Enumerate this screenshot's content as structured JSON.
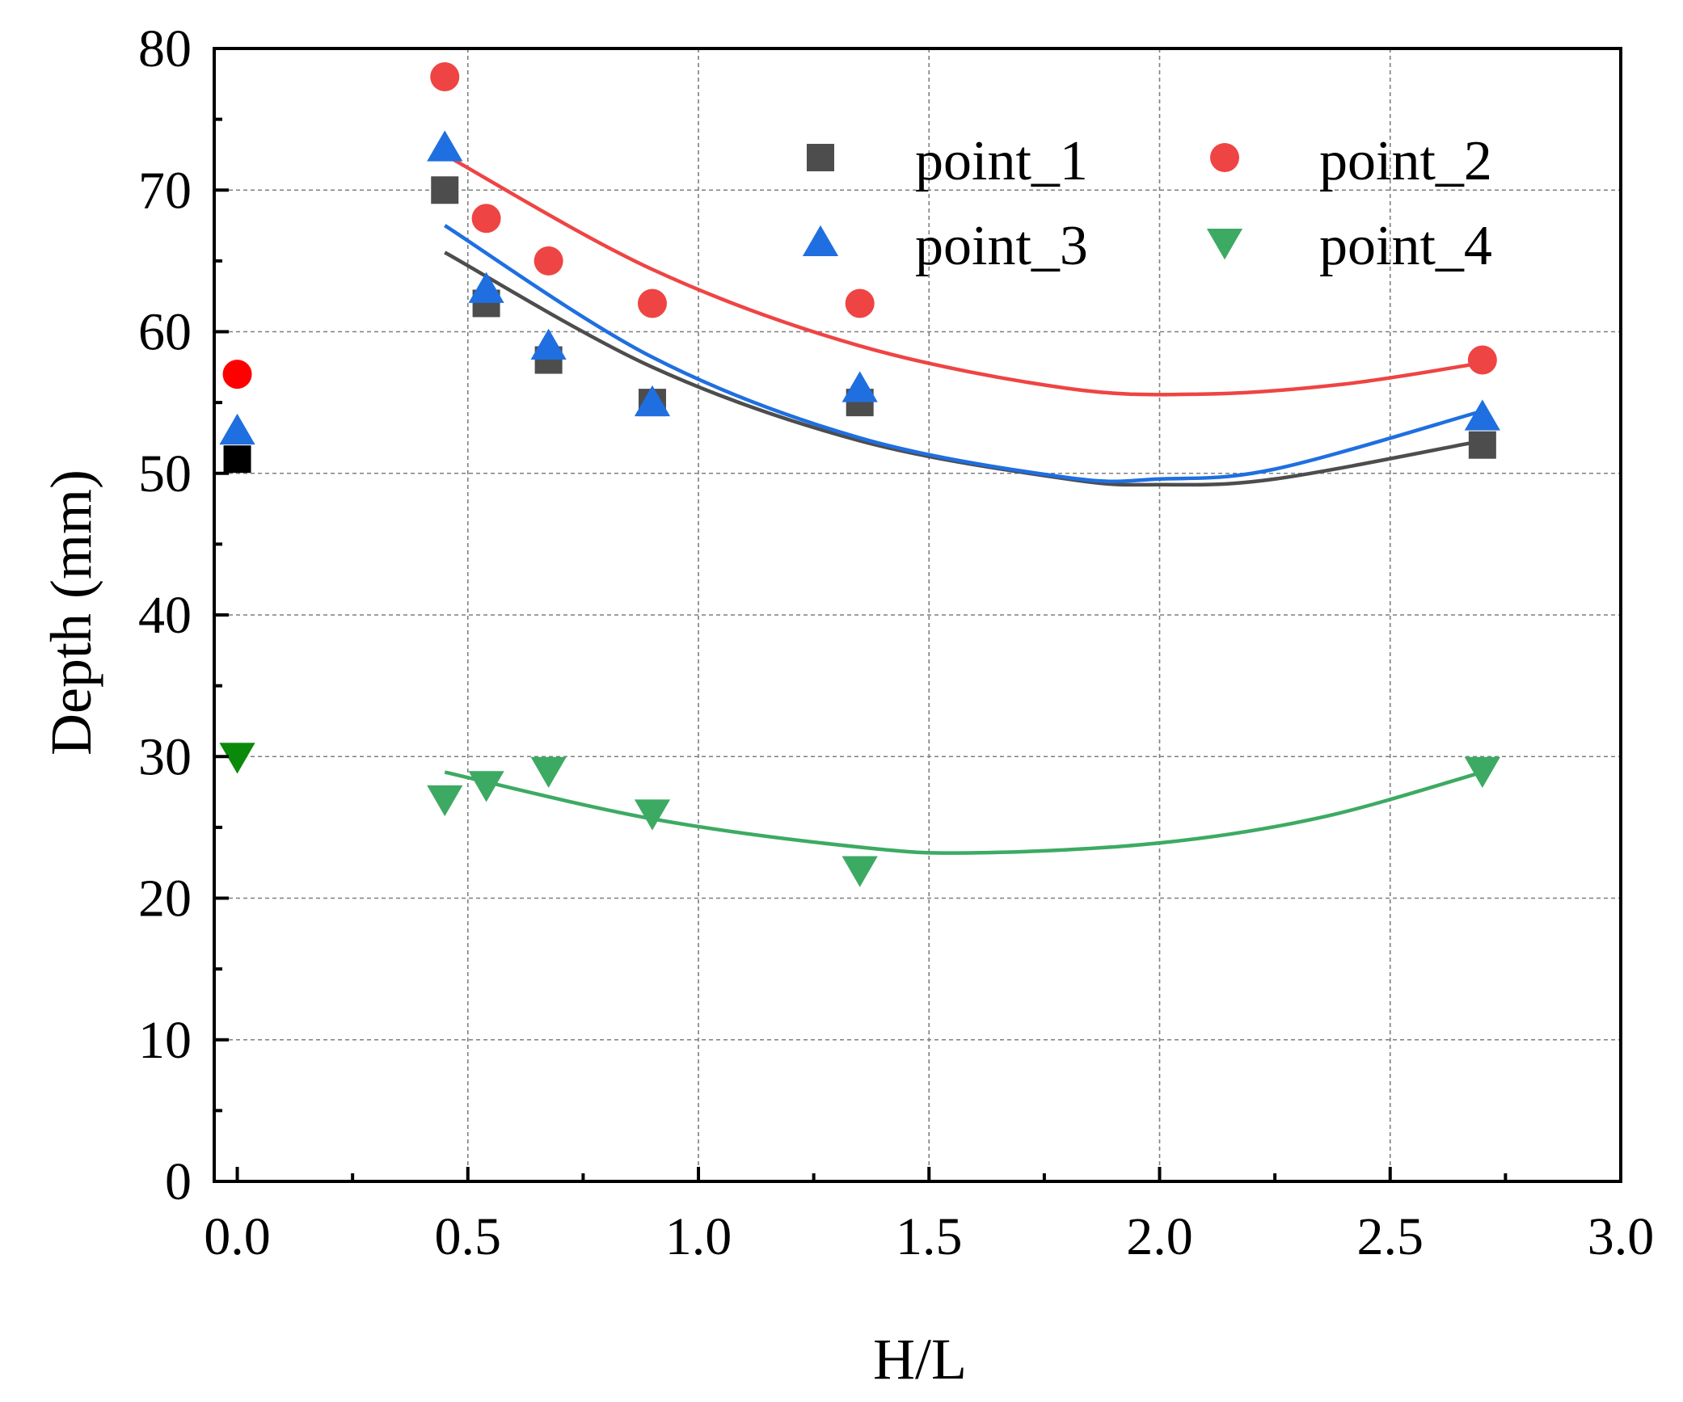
{
  "chart_data": {
    "type": "scatter",
    "title": "",
    "xlabel": "H/L",
    "ylabel": "Depth (mm)",
    "xlim": [
      0,
      3.0
    ],
    "ylim": [
      0,
      80
    ],
    "xticks": [
      "0.0",
      "0.5",
      "1.0",
      "1.5",
      "2.0",
      "2.5",
      "3.0"
    ],
    "yticks": [
      "0",
      "10",
      "20",
      "30",
      "40",
      "50",
      "60",
      "70",
      "80"
    ],
    "grid": true,
    "legend_position": "top-right",
    "series": [
      {
        "name": "point_1",
        "marker": "square",
        "color": "#4d4d4d",
        "origin_color": "#000000",
        "points": [
          [
            0.0,
            51
          ],
          [
            0.45,
            70
          ],
          [
            0.54,
            62
          ],
          [
            0.675,
            58
          ],
          [
            0.9,
            55
          ],
          [
            1.35,
            55
          ],
          [
            2.7,
            52
          ]
        ],
        "fit": [
          [
            0.45,
            65.6
          ],
          [
            0.9,
            57.5
          ],
          [
            1.35,
            52.3
          ],
          [
            1.8,
            49.6
          ],
          [
            2.0,
            49.2
          ],
          [
            2.25,
            49.6
          ],
          [
            2.7,
            52.3
          ]
        ]
      },
      {
        "name": "point_2",
        "marker": "circle",
        "color": "#ef4444",
        "origin_color": "#ff0000",
        "points": [
          [
            0.0,
            57
          ],
          [
            0.45,
            78
          ],
          [
            0.54,
            68
          ],
          [
            0.675,
            65
          ],
          [
            0.9,
            62
          ],
          [
            1.35,
            62
          ],
          [
            2.7,
            58
          ]
        ],
        "fit": [
          [
            0.45,
            72.5
          ],
          [
            0.9,
            64.4
          ],
          [
            1.35,
            59.0
          ],
          [
            1.8,
            56.0
          ],
          [
            2.1,
            55.6
          ],
          [
            2.4,
            56.3
          ],
          [
            2.7,
            57.8
          ]
        ]
      },
      {
        "name": "point_3",
        "marker": "triangle-up",
        "color": "#1f6fe0",
        "origin_color": "#1f6fe0",
        "points": [
          [
            0.0,
            53
          ],
          [
            0.45,
            73
          ],
          [
            0.54,
            63
          ],
          [
            0.675,
            59
          ],
          [
            0.9,
            55
          ],
          [
            1.35,
            56
          ],
          [
            2.7,
            54
          ]
        ],
        "fit": [
          [
            0.45,
            67.5
          ],
          [
            0.9,
            58.2
          ],
          [
            1.35,
            52.5
          ],
          [
            1.8,
            49.7
          ],
          [
            2.0,
            49.6
          ],
          [
            2.25,
            50.3
          ],
          [
            2.7,
            54.4
          ]
        ]
      },
      {
        "name": "point_4",
        "marker": "triangle-down",
        "color": "#3daa63",
        "origin_color": "#0a8a0a",
        "points": [
          [
            0.0,
            30
          ],
          [
            0.45,
            27
          ],
          [
            0.54,
            28
          ],
          [
            0.675,
            29
          ],
          [
            0.9,
            26
          ],
          [
            1.35,
            22
          ],
          [
            2.7,
            29
          ]
        ],
        "fit": [
          [
            0.45,
            28.9
          ],
          [
            0.9,
            25.6
          ],
          [
            1.35,
            23.6
          ],
          [
            1.6,
            23.2
          ],
          [
            2.0,
            23.9
          ],
          [
            2.35,
            25.7
          ],
          [
            2.7,
            28.9
          ]
        ]
      }
    ]
  }
}
